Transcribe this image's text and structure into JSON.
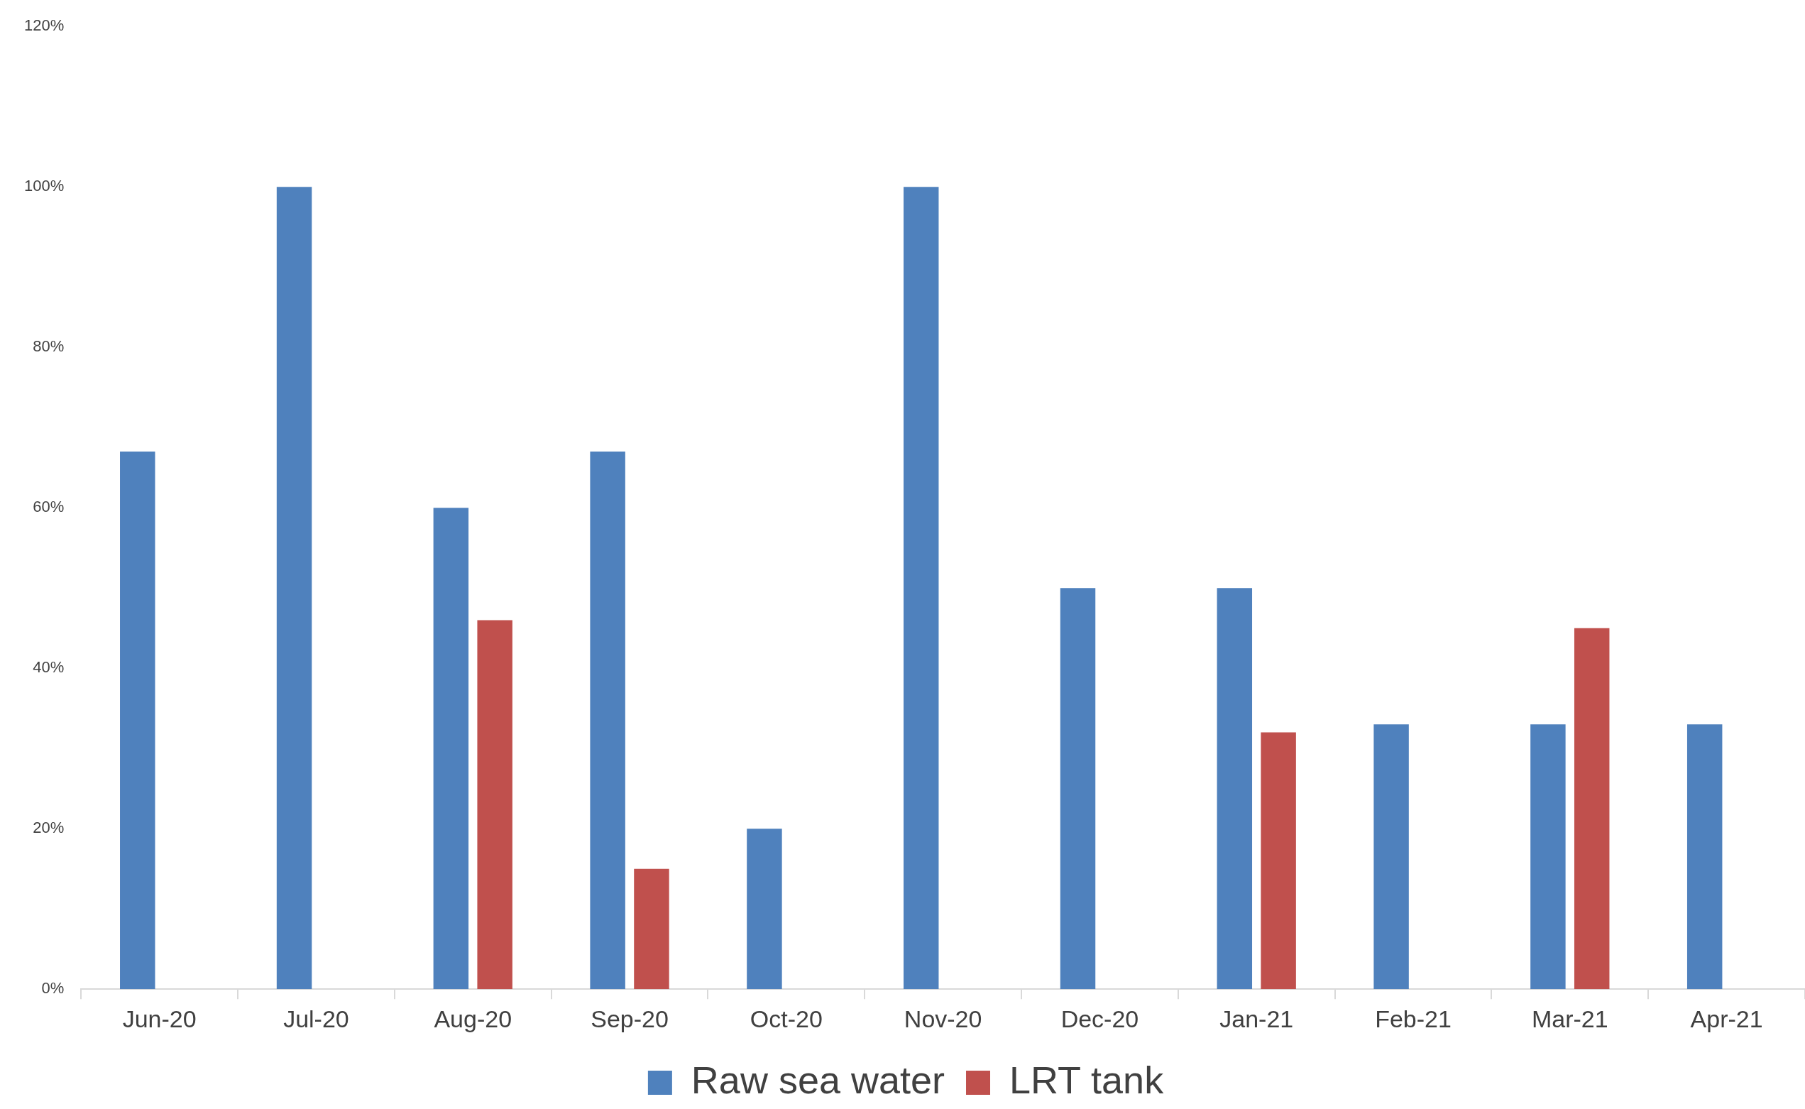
{
  "chart_data": {
    "type": "bar",
    "categories": [
      "Jun-20",
      "Jul-20",
      "Aug-20",
      "Sep-20",
      "Oct-20",
      "Nov-20",
      "Dec-20",
      "Jan-21",
      "Feb-21",
      "Mar-21",
      "Apr-21"
    ],
    "series": [
      {
        "name": "Raw sea water",
        "color": "#4f81bd",
        "values": [
          67,
          100,
          60,
          67,
          20,
          100,
          50,
          50,
          33,
          33,
          33
        ]
      },
      {
        "name": "LRT tank",
        "color": "#c0504d",
        "values": [
          null,
          null,
          46,
          15,
          null,
          null,
          null,
          32,
          null,
          45,
          null
        ]
      }
    ],
    "ylim": [
      0,
      120
    ],
    "yticks": [
      {
        "value": 0,
        "label": "0%"
      },
      {
        "value": 20,
        "label": "20%"
      },
      {
        "value": 40,
        "label": "40%"
      },
      {
        "value": 60,
        "label": "60%"
      },
      {
        "value": 80,
        "label": "80%"
      },
      {
        "value": 100,
        "label": "100%"
      },
      {
        "value": 120,
        "label": "120%"
      }
    ],
    "grid": false,
    "legend": "bottom"
  }
}
